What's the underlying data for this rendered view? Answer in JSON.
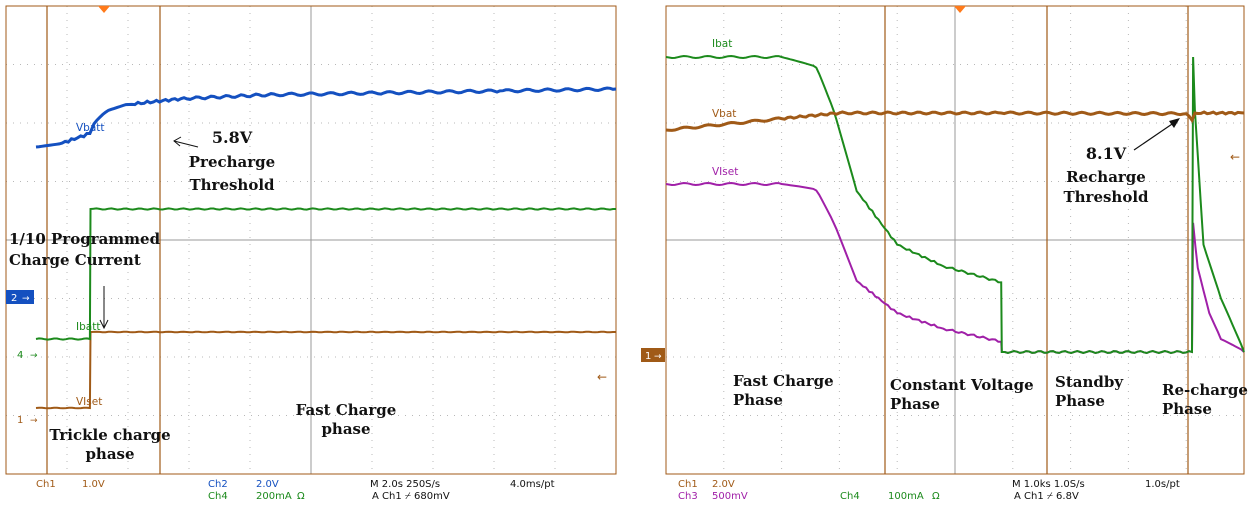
{
  "colors": {
    "ch1": "#a05a17",
    "ch2": "#1450c0",
    "ch3": "#a020a8",
    "ch4": "#1c8a1c",
    "grid": "#b8b8b8",
    "frame": "#a05a17",
    "text": "#111111"
  },
  "left": {
    "trace_labels": {
      "vbatt": "Vbatt",
      "ibatt": "Ibatt",
      "viset": "VIset"
    },
    "annotations": {
      "threshold_value": "5.8V",
      "threshold_line1": "Precharge",
      "threshold_line2": "Threshold",
      "current_line1": "1/10 Programmed",
      "current_line2": "Charge Current",
      "trickle_line1": "Trickle charge",
      "trickle_line2": "phase",
      "fast_line1": "Fast Charge",
      "fast_line2": "phase"
    },
    "markers": {
      "m2": "2",
      "m4": "4",
      "m1": "1"
    },
    "readout": {
      "ch1": "Ch1",
      "ch1_scale": "1.0V",
      "ch2": "Ch2",
      "ch2_scale": "2.0V",
      "ch4": "Ch4",
      "ch4_scale": "200mA",
      "ohm": "Ω",
      "time": "M 2.0s 250S/s",
      "ptrate": "4.0ms/pt",
      "trigger": "A Ch1 ⌿ 680mV"
    }
  },
  "right": {
    "trace_labels": {
      "ibat": "Ibat",
      "vbat": "Vbat",
      "viset": "VIset"
    },
    "annotations": {
      "threshold_value": "8.1V",
      "threshold_line1": "Recharge",
      "threshold_line2": "Threshold",
      "fast_line1": "Fast Charge",
      "fast_line2": "Phase",
      "cv_line1": "Constant Voltage",
      "cv_line2": "Phase",
      "standby_line1": "Standby",
      "standby_line2": "Phase",
      "recharge_line1": "Re-charge",
      "recharge_line2": "Phase"
    },
    "markers": {
      "m1": "1"
    },
    "readout": {
      "ch1": "Ch1",
      "ch1_scale": "2.0V",
      "ch3": "Ch3",
      "ch3_scale": "500mV",
      "ch4": "Ch4",
      "ch4_scale": "100mA",
      "ohm": "Ω",
      "time": "M 1.0ks 1.0S/s",
      "ptrate": "1.0s/pt",
      "trigger": "A Ch1 ⌿ 6.8V"
    }
  },
  "chart_data": [
    {
      "type": "line",
      "panel": "left",
      "series": [
        {
          "name": "Vbatt",
          "channel": "Ch2",
          "x": [
            0,
            0.45,
            0.93,
            1.0,
            1.2,
            1.6,
            2.5,
            4,
            6,
            8,
            10
          ],
          "y": [
            4.6,
            4.7,
            4.95,
            5.2,
            5.5,
            5.7,
            5.85,
            5.95,
            6.0,
            6.05,
            6.1
          ]
        },
        {
          "name": "Ibatt",
          "channel": "Ch4",
          "x": [
            0,
            0.93,
            0.94,
            10
          ],
          "y": [
            0.055,
            0.055,
            0.55,
            0.55
          ]
        },
        {
          "name": "VIset",
          "channel": "Ch1",
          "x": [
            0,
            0.93,
            0.94,
            10
          ],
          "y": [
            0.12,
            0.12,
            1.05,
            1.05
          ]
        }
      ]
    },
    {
      "type": "line",
      "panel": "right",
      "series": [
        {
          "name": "Ibat",
          "channel": "Ch4",
          "x": [
            0,
            2.0,
            2.6,
            2.9,
            3.3,
            4.0,
            4.8,
            5.8,
            5.81,
            9.1,
            9.12,
            9.15,
            9.3,
            9.6,
            10
          ],
          "y": [
            0.55,
            0.55,
            0.53,
            0.45,
            0.3,
            0.2,
            0.16,
            0.13,
            0,
            0,
            0.55,
            0.45,
            0.2,
            0.1,
            0
          ]
        },
        {
          "name": "Vbat",
          "channel": "Ch1",
          "x": [
            0,
            2.0,
            3.0,
            5.8,
            9.0,
            9.1,
            9.15,
            10
          ],
          "y": [
            7.6,
            7.95,
            8.12,
            8.12,
            8.1,
            7.9,
            8.12,
            8.12
          ]
        },
        {
          "name": "VIset",
          "channel": "Ch3",
          "x": [
            0,
            2.0,
            2.6,
            2.9,
            3.3,
            4.0,
            4.8,
            5.8,
            5.81,
            9.1,
            9.12,
            9.2,
            9.4,
            9.6,
            10
          ],
          "y": [
            1.3,
            1.3,
            1.25,
            1.0,
            0.55,
            0.3,
            0.18,
            0.08,
            0,
            0,
            1.0,
            0.65,
            0.3,
            0.1,
            0
          ]
        }
      ]
    }
  ]
}
